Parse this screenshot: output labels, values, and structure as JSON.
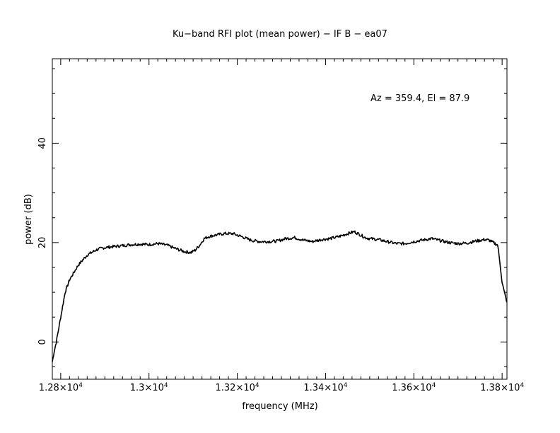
{
  "chart_data": {
    "type": "line",
    "title": "Ku−band RFI plot (mean power) − IF B − ea07",
    "xlabel": "frequency (MHz)",
    "ylabel": "power (dB)",
    "annotation": "Az = 359.4, El = 87.9",
    "xlim": [
      12781,
      13811
    ],
    "ylim": [
      -7.5,
      57
    ],
    "x_ticks": [
      {
        "value": 12800,
        "mantissa": "1.28×10",
        "exp": "4"
      },
      {
        "value": 13000,
        "mantissa": "1.3×10",
        "exp": "4"
      },
      {
        "value": 13200,
        "mantissa": "1.32×10",
        "exp": "4"
      },
      {
        "value": 13400,
        "mantissa": "1.34×10",
        "exp": "4"
      },
      {
        "value": 13600,
        "mantissa": "1.36×10",
        "exp": "4"
      },
      {
        "value": 13800,
        "mantissa": "1.38×10",
        "exp": "4"
      }
    ],
    "y_ticks": [
      {
        "value": 0,
        "label": "0"
      },
      {
        "value": 20,
        "label": "20"
      },
      {
        "value": 40,
        "label": "40"
      }
    ],
    "x_minor_step": 20,
    "y_minor_step": 5,
    "grid": false,
    "series": [
      {
        "color": "#000000",
        "x": [
          12781,
          12785,
          12790,
          12800,
          12810,
          12820,
          12830,
          12840,
          12850,
          12860,
          12870,
          12880,
          12890,
          12900,
          12920,
          12940,
          12960,
          12980,
          13000,
          13020,
          13040,
          13060,
          13080,
          13095,
          13105,
          13115,
          13125,
          13135,
          13150,
          13170,
          13190,
          13210,
          13230,
          13250,
          13270,
          13290,
          13310,
          13330,
          13350,
          13370,
          13390,
          13410,
          13430,
          13450,
          13465,
          13480,
          13490,
          13500,
          13520,
          13540,
          13560,
          13580,
          13600,
          13620,
          13640,
          13660,
          13680,
          13700,
          13720,
          13740,
          13760,
          13770,
          13780,
          13790,
          13795,
          13800,
          13805,
          13811
        ],
        "y": [
          -4,
          -2,
          0,
          5,
          10,
          12.5,
          14,
          15.5,
          16.5,
          17.5,
          18,
          18.5,
          18.8,
          19,
          19.2,
          19.4,
          19.6,
          19.7,
          19.6,
          19.8,
          19.5,
          18.8,
          18.2,
          18,
          18.5,
          19.5,
          20.8,
          21.2,
          21.5,
          21.8,
          21.8,
          21.2,
          20.5,
          20.2,
          20.2,
          20.3,
          20.8,
          21,
          20.5,
          20.2,
          20.6,
          20.8,
          21.2,
          21.8,
          22.2,
          21.5,
          21,
          20.8,
          20.6,
          20.2,
          19.8,
          19.8,
          20.2,
          20.5,
          20.8,
          20.4,
          20,
          19.8,
          19.9,
          20.3,
          20.6,
          20.5,
          20,
          19.5,
          16,
          12,
          10,
          8
        ]
      }
    ]
  }
}
